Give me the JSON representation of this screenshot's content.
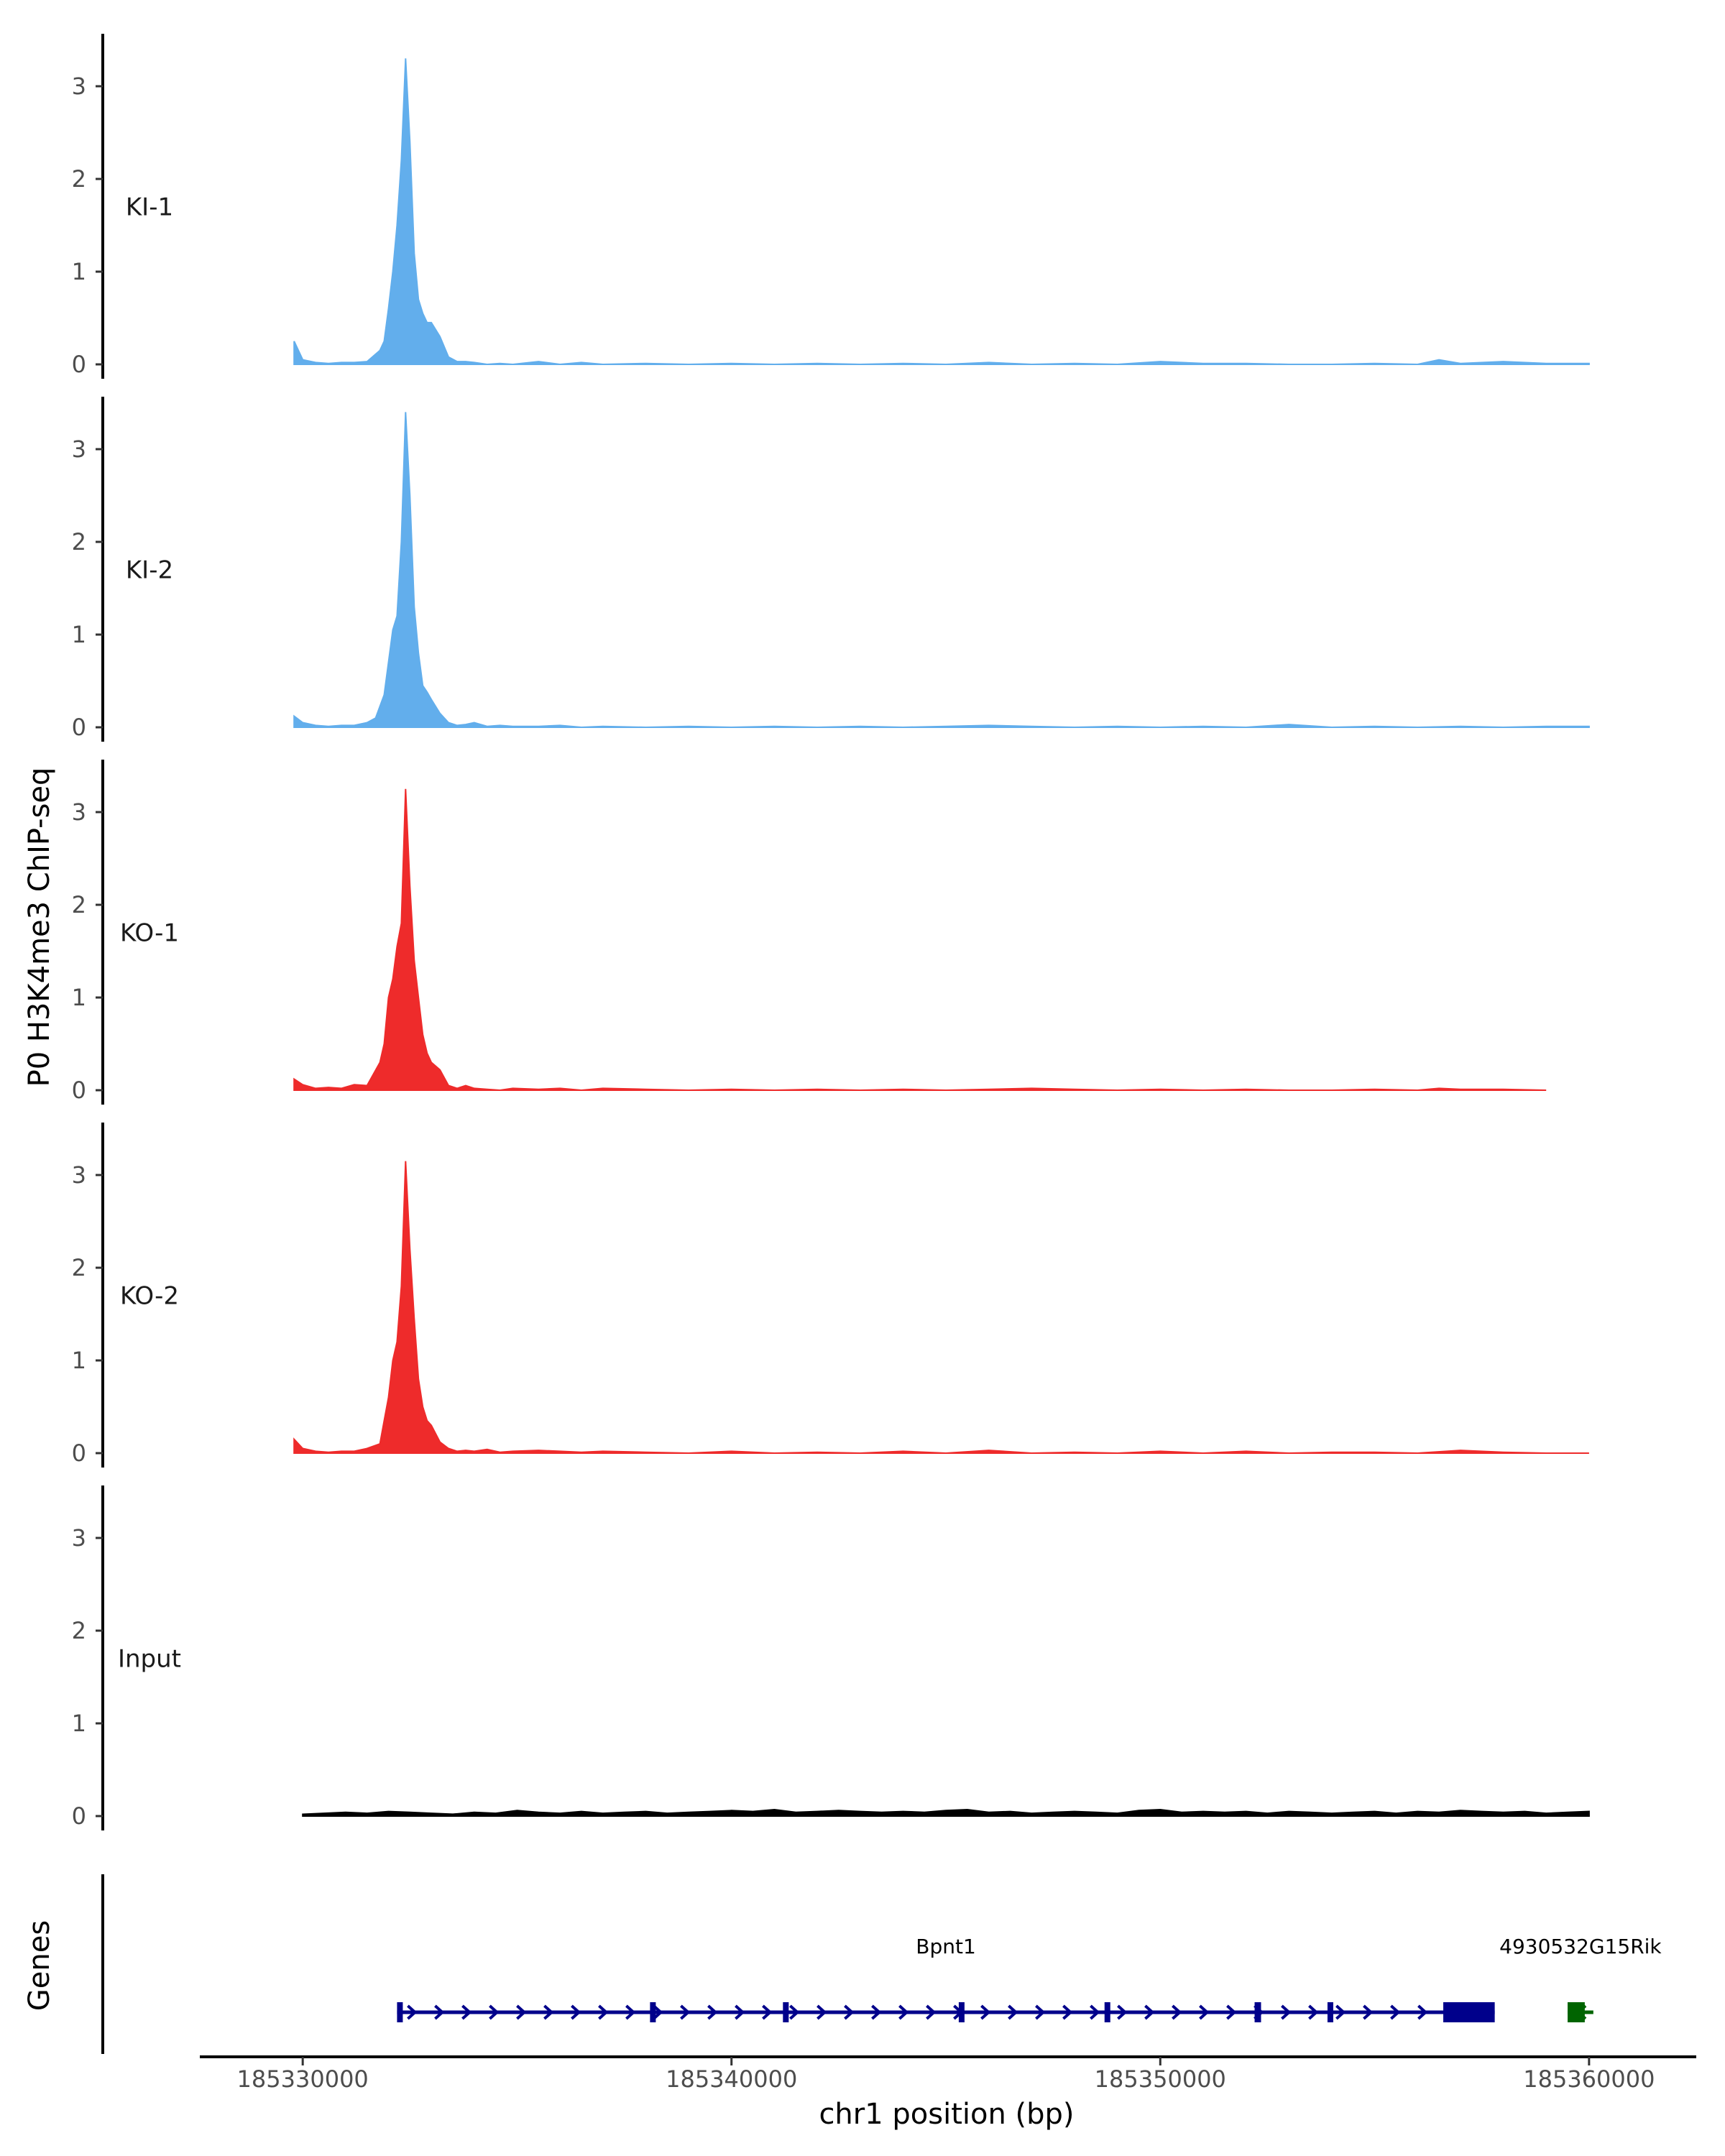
{
  "chart_data": {
    "type": "area",
    "ylabel": "P0 H3K4me3 ChIP-seq",
    "xlabel": "chr1 position (bp)",
    "xlim": [
      185327600,
      185362500
    ],
    "ylim": [
      0,
      3.5
    ],
    "y_ticks": [
      0,
      1,
      2,
      3
    ],
    "x_ticks": [
      185330000,
      185340000,
      185350000,
      185360000
    ],
    "x_tick_labels": [
      "185330000",
      "185340000",
      "185350000",
      "185360000"
    ],
    "grid": false,
    "colors": {
      "KI": "#62aeec",
      "KO": "#ee2b2b",
      "Input": "#000000",
      "Bpnt1": "#00008b",
      "4930532G15Rik": "#006400"
    },
    "tracks": [
      {
        "name": "KI-1",
        "color": "#62aeec",
        "x": [
          185329800,
          185330000,
          185330300,
          185330600,
          185330900,
          185331200,
          185331500,
          185331800,
          185331900,
          185332000,
          185332100,
          185332200,
          185332300,
          185332400,
          185332500,
          185332600,
          185332700,
          185332800,
          185332900,
          185333000,
          185333200,
          185333400,
          185333600,
          185333800,
          185334000,
          185334300,
          185334600,
          185334900,
          185335500,
          185336000,
          185336500,
          185337000,
          185338000,
          185339000,
          185340000,
          185341000,
          185342000,
          185343000,
          185344000,
          185345000,
          185346000,
          185347000,
          185348000,
          185349000,
          185350000,
          185351000,
          185352000,
          185353000,
          185354000,
          185355000,
          185356000,
          185356500,
          185357000,
          185358000,
          185359000,
          185360000
        ],
        "values": [
          0.25,
          0.05,
          0.02,
          0.01,
          0.02,
          0.02,
          0.03,
          0.15,
          0.25,
          0.6,
          1.0,
          1.5,
          2.2,
          3.3,
          2.4,
          1.2,
          0.7,
          0.55,
          0.45,
          0.45,
          0.3,
          0.08,
          0.03,
          0.03,
          0.02,
          0.0,
          0.01,
          0.0,
          0.03,
          0.0,
          0.02,
          0.0,
          0.01,
          0.0,
          0.01,
          0.0,
          0.01,
          0.0,
          0.01,
          0.0,
          0.02,
          0.0,
          0.01,
          0.0,
          0.03,
          0.01,
          0.01,
          0.0,
          0.0,
          0.01,
          0.0,
          0.05,
          0.01,
          0.03,
          0.01,
          0.01
        ]
      },
      {
        "name": "KI-2",
        "color": "#62aeec",
        "x": [
          185329800,
          185330000,
          185330300,
          185330600,
          185330900,
          185331200,
          185331500,
          185331700,
          185331900,
          185332000,
          185332100,
          185332200,
          185332300,
          185332400,
          185332500,
          185332600,
          185332700,
          185332800,
          185332900,
          185333000,
          185333200,
          185333400,
          185333600,
          185333800,
          185334000,
          185334300,
          185334600,
          185334900,
          185335500,
          185336000,
          185336500,
          185337000,
          185338000,
          185339000,
          185340000,
          185341000,
          185342000,
          185343000,
          185344000,
          185345000,
          185346000,
          185347000,
          185348000,
          185349000,
          185350000,
          185351000,
          185352000,
          185353000,
          185354000,
          185355000,
          185356000,
          185357000,
          185358000,
          185359000,
          185360000
        ],
        "values": [
          0.12,
          0.05,
          0.02,
          0.01,
          0.02,
          0.02,
          0.05,
          0.1,
          0.35,
          0.7,
          1.05,
          1.2,
          2.0,
          3.4,
          2.5,
          1.3,
          0.8,
          0.45,
          0.38,
          0.3,
          0.15,
          0.05,
          0.02,
          0.03,
          0.05,
          0.01,
          0.02,
          0.01,
          0.01,
          0.02,
          0.0,
          0.01,
          0.0,
          0.01,
          0.0,
          0.01,
          0.0,
          0.01,
          0.0,
          0.01,
          0.02,
          0.01,
          0.0,
          0.01,
          0.0,
          0.01,
          0.0,
          0.03,
          0.0,
          0.01,
          0.0,
          0.01,
          0.0,
          0.01,
          0.01
        ]
      },
      {
        "name": "KO-1",
        "color": "#ee2b2b",
        "x": [
          185329800,
          185330000,
          185330300,
          185330600,
          185330900,
          185331200,
          185331500,
          185331800,
          185331900,
          185332000,
          185332100,
          185332200,
          185332300,
          185332400,
          185332500,
          185332600,
          185332700,
          185332800,
          185332900,
          185333000,
          185333200,
          185333400,
          185333600,
          185333800,
          185334000,
          185334300,
          185334600,
          185334900,
          185335500,
          185336000,
          185336500,
          185337000,
          185338000,
          185339000,
          185340000,
          185341000,
          185342000,
          185343000,
          185344000,
          185345000,
          185346000,
          185347000,
          185348000,
          185349000,
          185350000,
          185351000,
          185352000,
          185353000,
          185354000,
          185355000,
          185356000,
          185356500,
          185357000,
          185358000,
          185359000
        ],
        "values": [
          0.12,
          0.06,
          0.02,
          0.03,
          0.02,
          0.06,
          0.05,
          0.3,
          0.5,
          1.0,
          1.2,
          1.55,
          1.8,
          3.25,
          2.2,
          1.4,
          1.0,
          0.6,
          0.4,
          0.3,
          0.22,
          0.05,
          0.02,
          0.05,
          0.02,
          0.01,
          0.0,
          0.02,
          0.01,
          0.02,
          0.0,
          0.02,
          0.01,
          0.0,
          0.01,
          0.0,
          0.01,
          0.0,
          0.01,
          0.0,
          0.01,
          0.02,
          0.01,
          0.0,
          0.01,
          0.0,
          0.01,
          0.0,
          0.0,
          0.01,
          0.0,
          0.02,
          0.01,
          0.01,
          0.0
        ]
      },
      {
        "name": "KO-2",
        "color": "#ee2b2b",
        "x": [
          185329800,
          185330000,
          185330300,
          185330600,
          185330900,
          185331200,
          185331500,
          185331800,
          185331900,
          185332000,
          185332100,
          185332200,
          185332300,
          185332400,
          185332500,
          185332600,
          185332700,
          185332800,
          185332900,
          185333000,
          185333200,
          185333400,
          185333600,
          185333800,
          185334000,
          185334300,
          185334600,
          185334900,
          185335500,
          185336000,
          185336500,
          185337000,
          185338000,
          185339000,
          185340000,
          185341000,
          185342000,
          185343000,
          185344000,
          185345000,
          185346000,
          185347000,
          185348000,
          185349000,
          185350000,
          185351000,
          185352000,
          185353000,
          185354000,
          185355000,
          185356000,
          185357000,
          185358000,
          185359000,
          185360000
        ],
        "values": [
          0.15,
          0.05,
          0.02,
          0.01,
          0.02,
          0.02,
          0.05,
          0.1,
          0.35,
          0.6,
          1.0,
          1.2,
          1.8,
          3.15,
          2.2,
          1.45,
          0.8,
          0.5,
          0.35,
          0.3,
          0.12,
          0.05,
          0.02,
          0.03,
          0.02,
          0.04,
          0.01,
          0.02,
          0.03,
          0.02,
          0.01,
          0.02,
          0.01,
          0.0,
          0.02,
          0.0,
          0.01,
          0.0,
          0.02,
          0.0,
          0.03,
          0.0,
          0.01,
          0.0,
          0.02,
          0.0,
          0.02,
          0.0,
          0.01,
          0.01,
          0.0,
          0.03,
          0.01,
          0.0,
          0.0
        ]
      },
      {
        "name": "Input",
        "color": "#000000",
        "x": [
          185330000,
          185330500,
          185331000,
          185331500,
          185332000,
          185332500,
          185333000,
          185333500,
          185334000,
          185334500,
          185335000,
          185335500,
          185336000,
          185336500,
          185337000,
          185337500,
          185338000,
          185338500,
          185339000,
          185339500,
          185340000,
          185340500,
          185341000,
          185341500,
          185342000,
          185342500,
          185343000,
          185343500,
          185344000,
          185344500,
          185345000,
          185345500,
          185346000,
          185346500,
          185347000,
          185347500,
          185348000,
          185348500,
          185349000,
          185349500,
          185350000,
          185350500,
          185351000,
          185351500,
          185352000,
          185352500,
          185353000,
          185353500,
          185354000,
          185354500,
          185355000,
          185355500,
          185356000,
          185356500,
          185357000,
          185357500,
          185358000,
          185358500,
          185359000,
          185359500,
          185360000
        ],
        "values": [
          0.02,
          0.03,
          0.04,
          0.03,
          0.05,
          0.04,
          0.03,
          0.02,
          0.04,
          0.03,
          0.06,
          0.04,
          0.03,
          0.05,
          0.03,
          0.04,
          0.05,
          0.03,
          0.04,
          0.05,
          0.06,
          0.05,
          0.07,
          0.04,
          0.05,
          0.06,
          0.05,
          0.04,
          0.05,
          0.04,
          0.06,
          0.07,
          0.04,
          0.05,
          0.03,
          0.04,
          0.05,
          0.04,
          0.03,
          0.06,
          0.07,
          0.04,
          0.05,
          0.04,
          0.05,
          0.03,
          0.05,
          0.04,
          0.03,
          0.04,
          0.05,
          0.03,
          0.05,
          0.04,
          0.06,
          0.05,
          0.04,
          0.05,
          0.03,
          0.04,
          0.05
        ]
      }
    ],
    "genes": [
      {
        "name": "Bpnt1",
        "strand": "+",
        "start": 185332200,
        "end": 185357800,
        "color": "#00008b",
        "exons": [
          [
            185332200,
            185332300
          ],
          [
            185338100,
            185338150
          ],
          [
            185341200,
            185341250
          ],
          [
            185345300,
            185345400
          ],
          [
            185348700,
            185348750
          ],
          [
            185352200,
            185352350
          ],
          [
            185353900,
            185354000
          ],
          [
            185356600,
            185357800
          ]
        ]
      },
      {
        "name": "4930532G15Rik",
        "strand": "-",
        "start": 185359500,
        "end": 185360100,
        "color": "#006400",
        "exons": [
          [
            185359500,
            185359900
          ]
        ]
      }
    ],
    "genes_label": "Genes"
  }
}
